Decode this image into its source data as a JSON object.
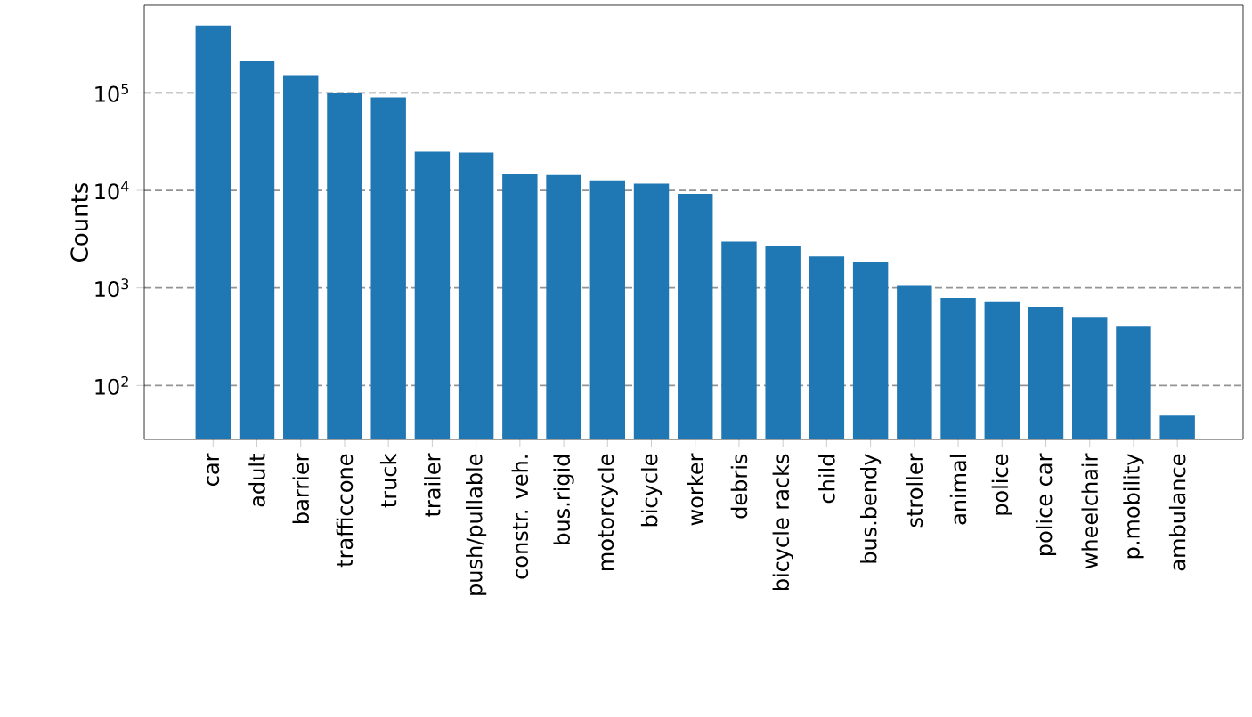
{
  "chart_data": {
    "type": "bar",
    "ylabel": "Counts",
    "categories": [
      "car",
      "adult",
      "barrier",
      "trafficcone",
      "truck",
      "trailer",
      "push/pullable",
      "constr. veh.",
      "bus.rigid",
      "motorcycle",
      "bicycle",
      "worker",
      "debris",
      "bicycle racks",
      "child",
      "bus.bendy",
      "stroller",
      "animal",
      "police",
      "police car",
      "wheelchair",
      "p.mobility",
      "ambulance"
    ],
    "values": [
      490000,
      210000,
      152000,
      100000,
      90000,
      25000,
      24500,
      14600,
      14400,
      12700,
      11700,
      9200,
      3000,
      2700,
      2100,
      1850,
      1070,
      790,
      730,
      640,
      505,
      400,
      49
    ],
    "color": "#1f77b4",
    "log": "y",
    "ylim": [
      28,
      790000
    ],
    "yticks": [
      {
        "value": 100,
        "label": "10$^{2}$"
      },
      {
        "value": 1000,
        "label": "10$^{3}$"
      },
      {
        "value": 10000,
        "label": "10$^{4}$"
      },
      {
        "value": 100000,
        "label": "10$^{5}$"
      }
    ],
    "grid": "y"
  }
}
